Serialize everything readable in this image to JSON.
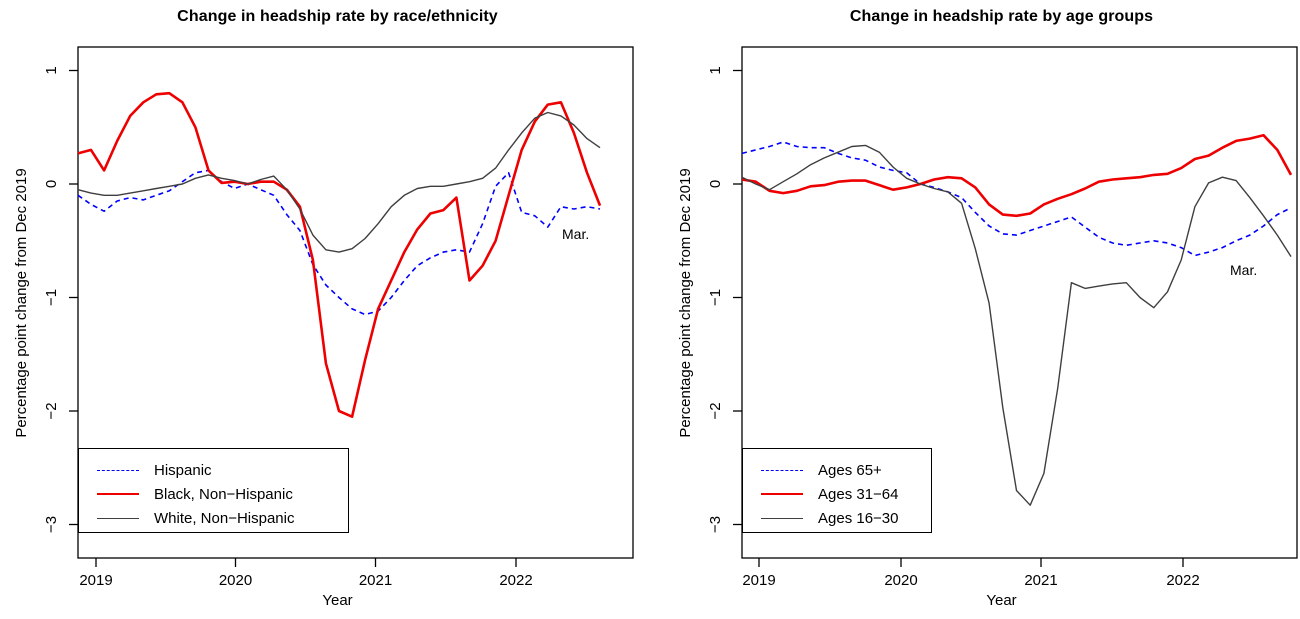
{
  "figure": {
    "background": "#ffffff"
  },
  "chart_data": [
    {
      "type": "line",
      "title": "Change in headship rate by race/ethnicity",
      "xlabel": "Year",
      "ylabel": "Percentage point change from Dec 2019",
      "annotation": "Mar.",
      "ylim": [
        -3,
        1
      ],
      "grid": false,
      "legend_position": "bottom-left",
      "x_tick_labels": [
        "2019",
        "2020",
        "2021",
        "2022"
      ],
      "y_ticks": [
        {
          "value": 1,
          "label": "1"
        },
        {
          "value": 0,
          "label": "0"
        },
        {
          "value": -1,
          "label": "−1"
        },
        {
          "value": -2,
          "label": "−2"
        },
        {
          "value": -3,
          "label": "−3"
        }
      ],
      "x": [
        "2018-11",
        "2018-12",
        "2019-01",
        "2019-02",
        "2019-03",
        "2019-04",
        "2019-05",
        "2019-06",
        "2019-07",
        "2019-08",
        "2019-09",
        "2019-10",
        "2019-11",
        "2019-12",
        "2020-01",
        "2020-02",
        "2020-03",
        "2020-04",
        "2020-05",
        "2020-06",
        "2020-07",
        "2020-08",
        "2020-09",
        "2020-10",
        "2020-11",
        "2020-12",
        "2021-01",
        "2021-02",
        "2021-03",
        "2021-04",
        "2021-05",
        "2021-06",
        "2021-07",
        "2021-08",
        "2021-09",
        "2021-10",
        "2021-11",
        "2021-12",
        "2022-01",
        "2022-02",
        "2022-03"
      ],
      "series": [
        {
          "name": "Hispanic",
          "color": "#0000ff",
          "dash": true,
          "width": 1.6,
          "values": [
            -0.1,
            -0.18,
            -0.24,
            -0.15,
            -0.12,
            -0.14,
            -0.1,
            -0.06,
            0.02,
            0.1,
            0.12,
            0.02,
            -0.04,
            0.0,
            -0.05,
            -0.1,
            -0.27,
            -0.41,
            -0.71,
            -0.89,
            -1.0,
            -1.1,
            -1.15,
            -1.12,
            -1.0,
            -0.85,
            -0.72,
            -0.65,
            -0.6,
            -0.58,
            -0.6,
            -0.35,
            -0.02,
            0.1,
            -0.25,
            -0.28,
            -0.38,
            -0.2,
            -0.22,
            -0.2,
            -0.22
          ]
        },
        {
          "name": "Black, Non−Hispanic",
          "color": "#ee0000",
          "dash": false,
          "width": 2.6,
          "values": [
            0.27,
            0.3,
            0.12,
            0.38,
            0.6,
            0.72,
            0.79,
            0.8,
            0.72,
            0.5,
            0.12,
            0.01,
            0.02,
            0.0,
            0.02,
            0.02,
            -0.05,
            -0.2,
            -0.67,
            -1.58,
            -2.0,
            -2.05,
            -1.55,
            -1.1,
            -0.85,
            -0.6,
            -0.4,
            -0.26,
            -0.23,
            -0.12,
            -0.85,
            -0.72,
            -0.5,
            -0.1,
            0.3,
            0.55,
            0.7,
            0.72,
            0.45,
            0.1,
            -0.19
          ]
        },
        {
          "name": "White, Non−Hispanic",
          "color": "#3f3f3f",
          "dash": false,
          "width": 1.4,
          "values": [
            -0.05,
            -0.08,
            -0.1,
            -0.1,
            -0.08,
            -0.06,
            -0.04,
            -0.02,
            0.0,
            0.05,
            0.08,
            0.05,
            0.03,
            0.0,
            0.04,
            0.07,
            -0.05,
            -0.22,
            -0.45,
            -0.58,
            -0.6,
            -0.57,
            -0.48,
            -0.35,
            -0.2,
            -0.1,
            -0.04,
            -0.02,
            -0.02,
            0.0,
            0.02,
            0.05,
            0.14,
            0.3,
            0.45,
            0.58,
            0.63,
            0.6,
            0.52,
            0.4,
            0.32
          ]
        }
      ]
    },
    {
      "type": "line",
      "title": "Change in headship rate by age groups",
      "xlabel": "Year",
      "ylabel": "Percentage point change from Dec 2019",
      "annotation": "Mar.",
      "ylim": [
        -3,
        1
      ],
      "grid": false,
      "legend_position": "bottom-left",
      "x_tick_labels": [
        "2019",
        "2020",
        "2021",
        "2022"
      ],
      "y_ticks": [
        {
          "value": 1,
          "label": "1"
        },
        {
          "value": 0,
          "label": "0"
        },
        {
          "value": -1,
          "label": "−1"
        },
        {
          "value": -2,
          "label": "−2"
        },
        {
          "value": -3,
          "label": "−3"
        }
      ],
      "x": [
        "2018-11",
        "2018-12",
        "2019-01",
        "2019-02",
        "2019-03",
        "2019-04",
        "2019-05",
        "2019-06",
        "2019-07",
        "2019-08",
        "2019-09",
        "2019-10",
        "2019-11",
        "2019-12",
        "2020-01",
        "2020-02",
        "2020-03",
        "2020-04",
        "2020-05",
        "2020-06",
        "2020-07",
        "2020-08",
        "2020-09",
        "2020-10",
        "2020-11",
        "2020-12",
        "2021-01",
        "2021-02",
        "2021-03",
        "2021-04",
        "2021-05",
        "2021-06",
        "2021-07",
        "2021-08",
        "2021-09",
        "2021-10",
        "2021-11",
        "2021-12",
        "2022-01",
        "2022-02",
        "2022-03"
      ],
      "series": [
        {
          "name": "Ages 65+",
          "color": "#0000ff",
          "dash": true,
          "width": 1.6,
          "values": [
            0.27,
            0.3,
            0.33,
            0.37,
            0.33,
            0.32,
            0.32,
            0.27,
            0.23,
            0.21,
            0.15,
            0.12,
            0.1,
            0.0,
            -0.03,
            -0.07,
            -0.12,
            -0.25,
            -0.37,
            -0.44,
            -0.45,
            -0.41,
            -0.37,
            -0.33,
            -0.29,
            -0.38,
            -0.47,
            -0.52,
            -0.54,
            -0.52,
            -0.5,
            -0.52,
            -0.56,
            -0.63,
            -0.6,
            -0.56,
            -0.5,
            -0.45,
            -0.37,
            -0.27,
            -0.21
          ]
        },
        {
          "name": "Ages 31−64",
          "color": "#ee0000",
          "dash": false,
          "width": 2.6,
          "values": [
            0.04,
            0.02,
            -0.06,
            -0.08,
            -0.06,
            -0.02,
            -0.01,
            0.02,
            0.03,
            0.03,
            -0.01,
            -0.05,
            -0.03,
            0.0,
            0.04,
            0.06,
            0.05,
            -0.03,
            -0.18,
            -0.27,
            -0.28,
            -0.26,
            -0.18,
            -0.13,
            -0.09,
            -0.04,
            0.02,
            0.04,
            0.05,
            0.06,
            0.08,
            0.09,
            0.14,
            0.22,
            0.25,
            0.32,
            0.38,
            0.4,
            0.43,
            0.3,
            0.08
          ]
        },
        {
          "name": "Ages 16−30",
          "color": "#3f3f3f",
          "dash": false,
          "width": 1.4,
          "values": [
            0.06,
            0.0,
            -0.05,
            0.02,
            0.09,
            0.17,
            0.23,
            0.28,
            0.33,
            0.34,
            0.28,
            0.15,
            0.05,
            0.0,
            -0.04,
            -0.07,
            -0.17,
            -0.57,
            -1.05,
            -1.97,
            -2.7,
            -2.83,
            -2.55,
            -1.8,
            -0.87,
            -0.92,
            -0.9,
            -0.88,
            -0.87,
            -1.0,
            -1.09,
            -0.95,
            -0.67,
            -0.2,
            0.01,
            0.06,
            0.03,
            -0.12,
            -0.28,
            -0.45,
            -0.64
          ]
        }
      ]
    }
  ]
}
